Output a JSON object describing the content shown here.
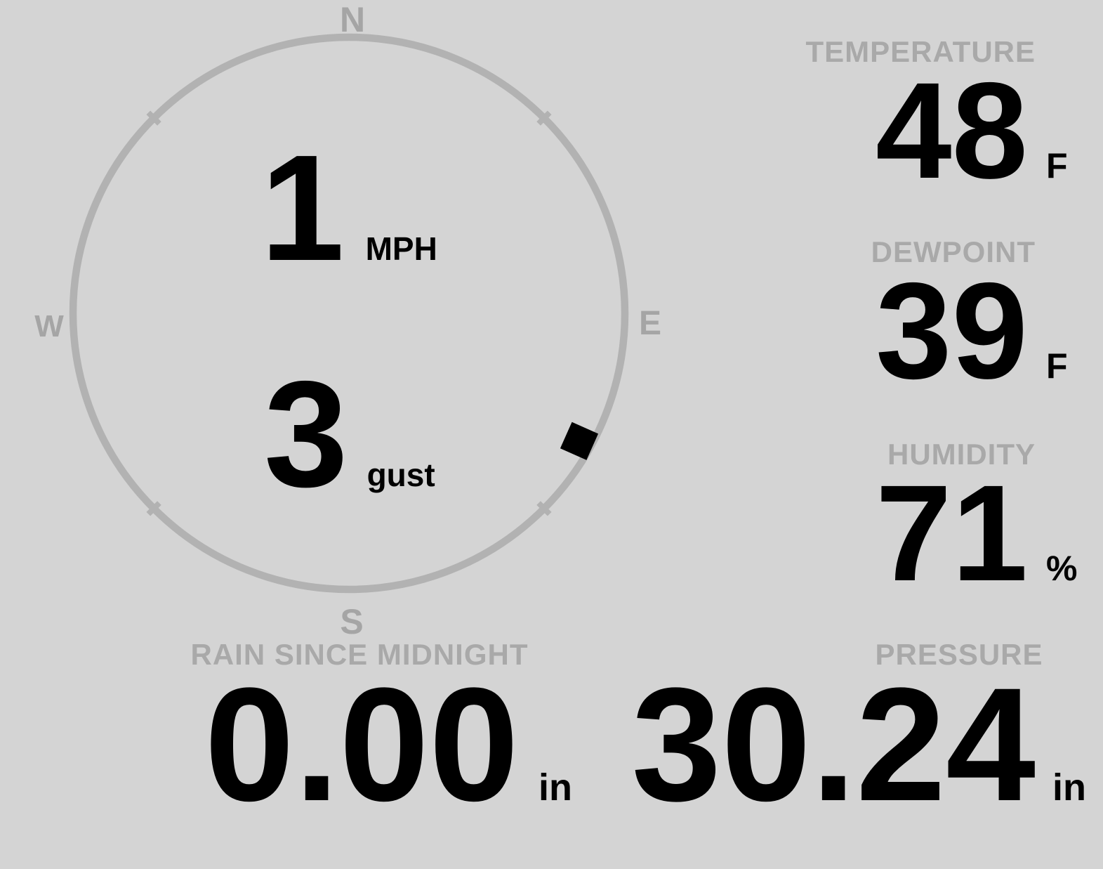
{
  "theme": {
    "background": "#d4d4d4",
    "label_color": "#a9a9a9",
    "circle_color": "#b2b2b2",
    "cardinal_color": "#a5a5a5",
    "value_color": "#000000"
  },
  "compass": {
    "cardinals": {
      "north": "N",
      "east": "E",
      "south": "S",
      "west": "W"
    },
    "wind_speed": {
      "value": "1",
      "unit": "MPH"
    },
    "wind_gust": {
      "value": "3",
      "unit": "gust"
    },
    "wind_direction_deg": 119
  },
  "stats": [
    {
      "id": "temperature",
      "label": "TEMPERATURE",
      "value": "48",
      "unit": "F"
    },
    {
      "id": "dewpoint",
      "label": "DEWPOINT",
      "value": "39",
      "unit": "F"
    },
    {
      "id": "humidity",
      "label": "HUMIDITY",
      "value": "71",
      "unit": "%"
    }
  ],
  "bottom": [
    {
      "id": "rain",
      "label": "RAIN SINCE MIDNIGHT",
      "value": "0.00",
      "unit": "in"
    },
    {
      "id": "pressure",
      "label": "PRESSURE",
      "value": "30.24",
      "unit": "in"
    }
  ]
}
